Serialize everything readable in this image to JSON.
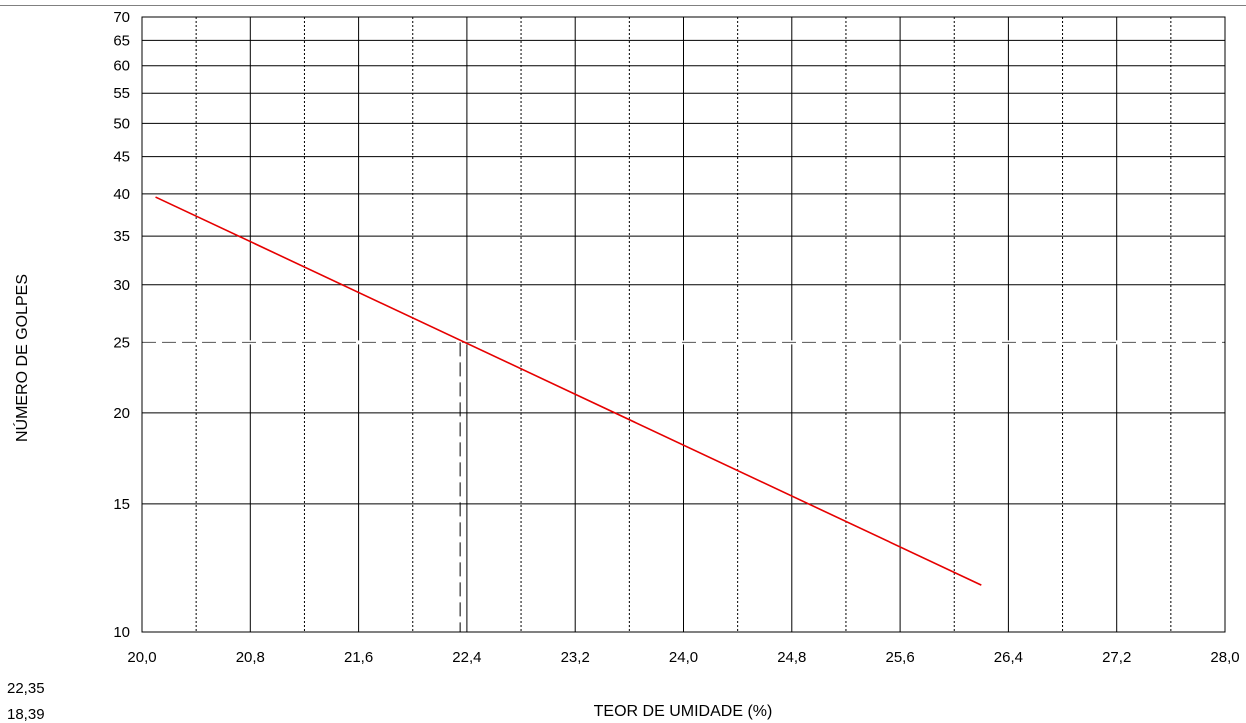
{
  "chart_data": {
    "type": "line",
    "xlabel": "TEOR DE UMIDADE (%)",
    "ylabel": "NÚMERO DE GOLPES",
    "xlim": [
      20.0,
      28.0
    ],
    "ylim": [
      10,
      70
    ],
    "y_scale": "log",
    "x_tick_labels": [
      "20,0",
      "20,8",
      "21,6",
      "22,4",
      "23,2",
      "24,0",
      "24,8",
      "25,6",
      "26,4",
      "27,2",
      "28,0"
    ],
    "x_major_ticks": [
      20.0,
      20.8,
      21.6,
      22.4,
      23.2,
      24.0,
      24.8,
      25.6,
      26.4,
      27.2,
      28.0
    ],
    "x_minor_ticks": [
      20.4,
      21.2,
      22.0,
      22.8,
      23.6,
      24.4,
      25.2,
      26.0,
      26.8,
      27.6
    ],
    "y_ticks": [
      10,
      15,
      20,
      25,
      30,
      35,
      40,
      45,
      50,
      55,
      60,
      65,
      70
    ],
    "y_tick_labels": [
      "10",
      "15",
      "20",
      "25",
      "30",
      "35",
      "40",
      "45",
      "50",
      "55",
      "60",
      "65",
      "70"
    ],
    "grid": true,
    "series": [
      {
        "color": "#e60000",
        "x": [
          20.1,
          26.2
        ],
        "y": [
          39.6,
          11.6
        ]
      }
    ],
    "reference": {
      "y": 25,
      "x": 22.35
    },
    "side_values": [
      "22,35",
      "18,39"
    ]
  }
}
